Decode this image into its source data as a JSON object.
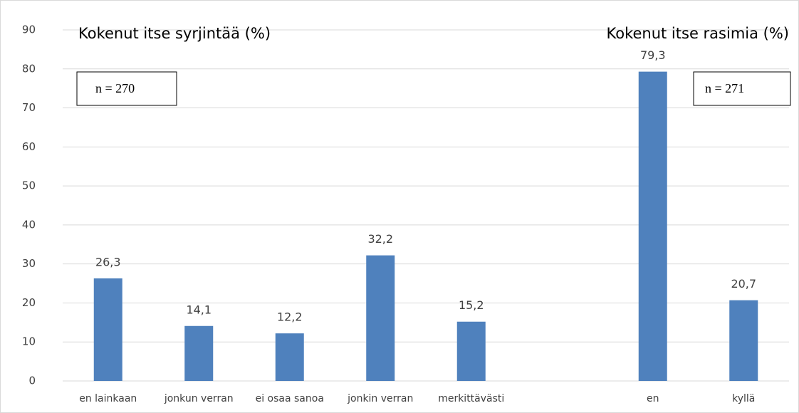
{
  "chart_data": {
    "type": "bar",
    "categories": [
      "en lainkaan",
      "jonkun verran",
      "ei osaa sanoa",
      "jonkin verran",
      "merkittävästi",
      null,
      "en",
      "kyllä"
    ],
    "values": [
      26.3,
      14.1,
      12.2,
      32.2,
      15.2,
      null,
      79.3,
      20.7
    ],
    "value_labels": [
      "26,3",
      "14,1",
      "12,2",
      "32,2",
      "15,2",
      null,
      "79,3",
      "20,7"
    ],
    "color": "#4f81bd",
    "ylim": [
      0,
      90
    ],
    "yticks": [
      0,
      10,
      20,
      30,
      40,
      50,
      60,
      70,
      80,
      90
    ],
    "grid": true,
    "annotations": [
      "Kokenut itse syrjintää (%)",
      "Kokenut itse rasimia (%)",
      "n = 270",
      "n = 271"
    ]
  }
}
